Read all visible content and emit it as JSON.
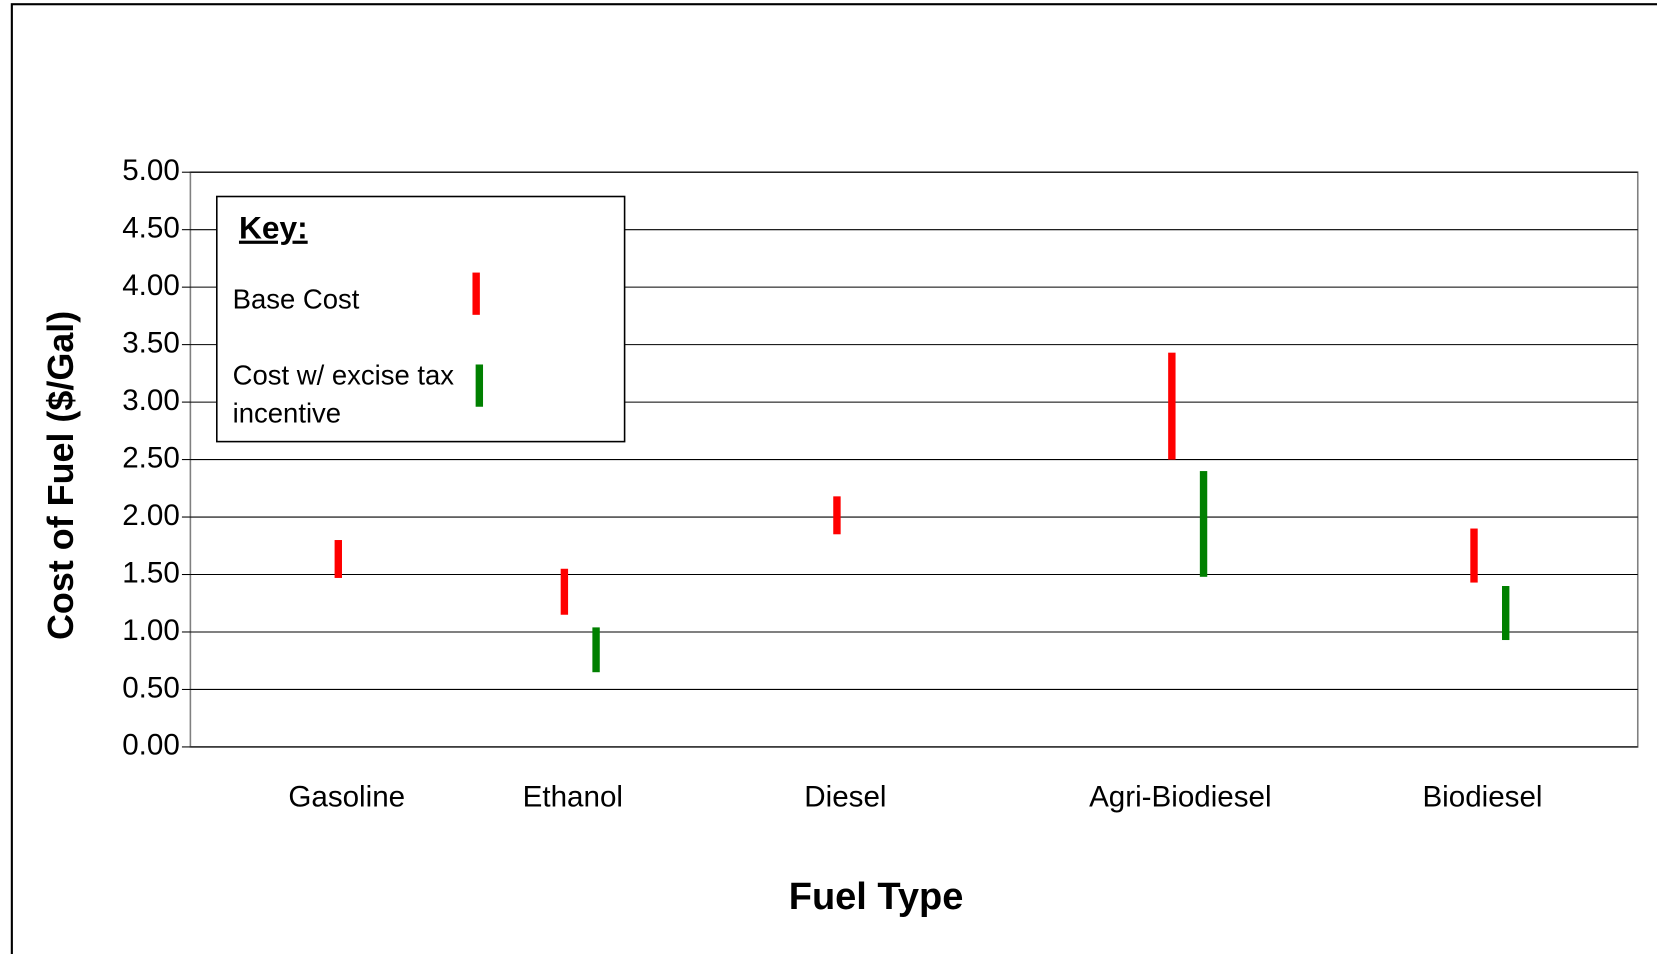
{
  "chart_data": {
    "type": "range-bar",
    "xlabel": "Fuel Type",
    "ylabel": "Cost of Fuel ($/Gal)",
    "legend_title": "Key:",
    "legend": "upper left",
    "grid": true,
    "categories": [
      "Gasoline",
      "Ethanol",
      "Diesel",
      "Agri-Biodiesel",
      "Biodiesel"
    ],
    "series": [
      {
        "name": "Base Cost",
        "color": "#ff0000",
        "low": [
          1.47,
          1.15,
          1.85,
          2.5,
          1.43
        ],
        "high": [
          1.8,
          1.55,
          2.18,
          3.43,
          1.9
        ]
      },
      {
        "name": "Cost w/ excise tax incentive",
        "color": "#008000",
        "low": [
          null,
          0.65,
          null,
          1.48,
          0.93
        ],
        "high": [
          null,
          1.04,
          null,
          2.4,
          1.4
        ]
      }
    ],
    "ylim": [
      0,
      5
    ],
    "yticks": [
      {
        "value": 0,
        "label": "0.00"
      },
      {
        "value": 0.5,
        "label": "0.50"
      },
      {
        "value": 1,
        "label": "1.00"
      },
      {
        "value": 1.5,
        "label": "1.50"
      },
      {
        "value": 2,
        "label": "2.00"
      },
      {
        "value": 2.5,
        "label": "2.50"
      },
      {
        "value": 3,
        "label": "3.00"
      },
      {
        "value": 3.5,
        "label": "3.50"
      },
      {
        "value": 4,
        "label": "4.00"
      },
      {
        "value": 4.5,
        "label": "4.50"
      },
      {
        "value": 5,
        "label": "5.00"
      }
    ]
  }
}
